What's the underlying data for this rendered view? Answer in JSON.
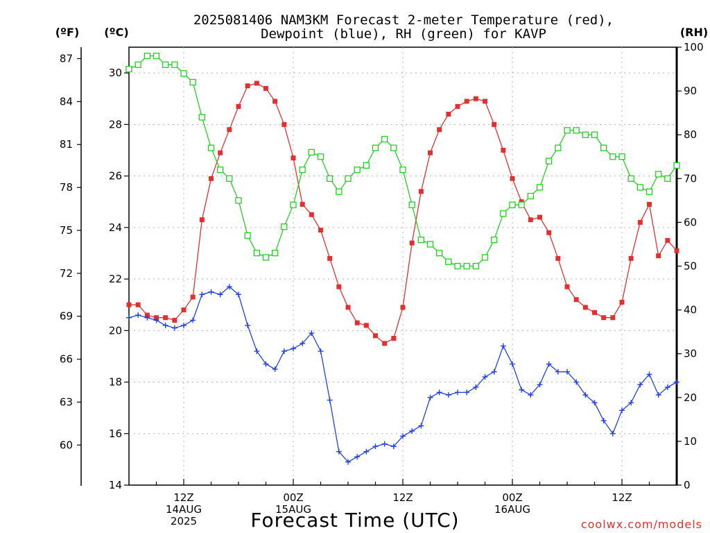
{
  "chart_data": {
    "type": "line",
    "title_line1": "2025081406 NAM3KM Forecast 2-meter Temperature (red),",
    "title_line2": "Dewpoint (blue), RH (green) for KAVP",
    "xlabel": "Forecast Time (UTC)",
    "unit_f": "(ºF)",
    "unit_c": "(ºC)",
    "unit_rh": "(RH)",
    "watermark": "coolwx.com/models",
    "x_hours_range": [
      0,
      60
    ],
    "ylim_c": [
      14,
      31
    ],
    "ylim_rh": [
      0,
      100
    ],
    "yticks_c": [
      14,
      16,
      18,
      20,
      22,
      24,
      26,
      28,
      30
    ],
    "yticks_f": [
      60,
      63,
      66,
      69,
      72,
      75,
      78,
      81,
      84,
      87
    ],
    "yticks_rh": [
      0,
      10,
      20,
      30,
      40,
      50,
      60,
      70,
      80,
      90,
      100
    ],
    "xticks": [
      {
        "hour": 6,
        "lines": [
          "12Z",
          "14AUG",
          "2025"
        ]
      },
      {
        "hour": 18,
        "lines": [
          "00Z",
          "15AUG"
        ]
      },
      {
        "hour": 30,
        "lines": [
          "12Z"
        ]
      },
      {
        "hour": 42,
        "lines": [
          "00Z",
          "16AUG"
        ]
      },
      {
        "hour": 54,
        "lines": [
          "12Z"
        ]
      }
    ],
    "series": [
      {
        "key": "temperature",
        "color": "#e03030",
        "marker": "filled-square",
        "values": [
          21.0,
          21.0,
          20.6,
          20.5,
          20.5,
          20.4,
          20.8,
          21.3,
          24.3,
          25.9,
          26.9,
          27.8,
          28.7,
          29.5,
          29.6,
          29.4,
          28.9,
          28.0,
          26.7,
          24.9,
          24.5,
          23.9,
          22.8,
          21.7,
          20.9,
          20.3,
          20.2,
          19.8,
          19.5,
          19.7,
          20.9,
          23.4,
          25.4,
          26.9,
          27.8,
          28.4,
          28.7,
          28.9,
          29.0,
          28.9,
          28.0,
          27.0,
          25.9,
          25.0,
          24.3,
          24.4,
          23.8,
          22.8,
          21.7,
          21.2,
          20.9,
          20.7,
          20.5,
          20.5,
          21.1,
          22.8,
          24.2,
          24.9,
          22.9,
          23.5,
          23.1
        ]
      },
      {
        "key": "dewpoint",
        "color": "#2040e0",
        "marker": "plus",
        "values": [
          20.5,
          20.6,
          20.5,
          20.4,
          20.2,
          20.1,
          20.2,
          20.4,
          21.4,
          21.5,
          21.4,
          21.7,
          21.4,
          20.2,
          19.2,
          18.7,
          18.5,
          19.2,
          19.3,
          19.5,
          19.9,
          19.2,
          17.3,
          15.3,
          14.9,
          15.1,
          15.3,
          15.5,
          15.6,
          15.5,
          15.9,
          16.1,
          16.3,
          17.4,
          17.6,
          17.5,
          17.6,
          17.6,
          17.8,
          18.2,
          18.4,
          19.4,
          18.7,
          17.7,
          17.5,
          17.9,
          18.7,
          18.4,
          18.4,
          18.0,
          17.5,
          17.2,
          16.5,
          16.0,
          16.9,
          17.2,
          17.9,
          18.3,
          17.5,
          17.8,
          18.0
        ]
      },
      {
        "key": "rh",
        "color": "#20d020",
        "marker": "open-square",
        "values": [
          95,
          96,
          98,
          98,
          96,
          96,
          94,
          92,
          84,
          77,
          72,
          70,
          65,
          57,
          53,
          52,
          53,
          59,
          64,
          72,
          76,
          75,
          70,
          67,
          70,
          72,
          73,
          77,
          79,
          77,
          72,
          64,
          56,
          55,
          53,
          51,
          50,
          50,
          50,
          52,
          56,
          62,
          64,
          64,
          66,
          68,
          74,
          77,
          81,
          81,
          80,
          80,
          77,
          75,
          75,
          70,
          68,
          67,
          71,
          70,
          73
        ]
      }
    ]
  }
}
